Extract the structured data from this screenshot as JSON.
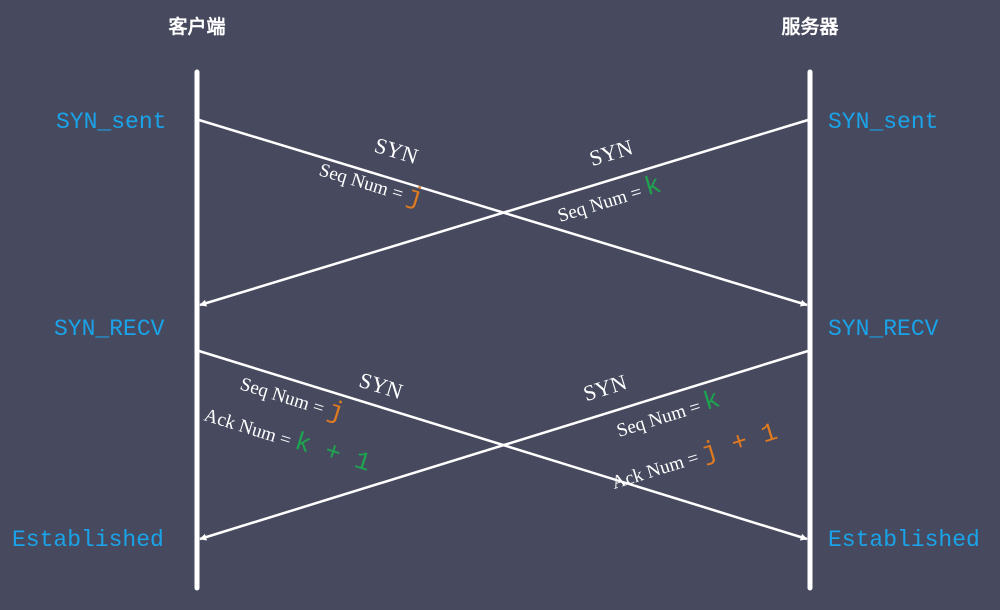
{
  "actors": {
    "client": "客户端",
    "server": "服务器"
  },
  "states": {
    "client": [
      "SYN_sent",
      "SYN_RECV",
      "Established"
    ],
    "server": [
      "SYN_sent",
      "SYN_RECV",
      "Established"
    ]
  },
  "colors": {
    "background": "#474a5f",
    "state": "#1aa3e8",
    "orange": "#e07a1f",
    "green": "#1ea34f",
    "line": "#ffffff"
  },
  "messages": {
    "m1": {
      "title": "SYN",
      "seq_label": "Seq Num = ",
      "seq_value": "j"
    },
    "m2": {
      "title": "SYN",
      "seq_label": "Seq Num = ",
      "seq_value": "k"
    },
    "m3": {
      "title": "SYN",
      "seq_label": "Seq Num = ",
      "seq_value": "j",
      "ack_label": "Ack Num = ",
      "ack_value": "k + 1"
    },
    "m4": {
      "title": "SYN",
      "seq_label": "Seq Num = ",
      "seq_value": "k",
      "ack_label": "Ack Num = ",
      "ack_value": "j + 1"
    }
  }
}
